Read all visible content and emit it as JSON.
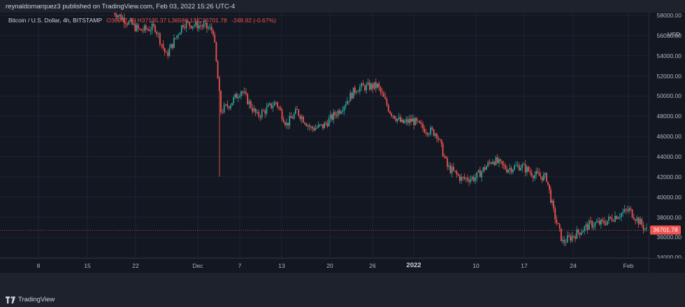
{
  "header": {
    "published": "reynaldomarquez3 published on TradingView.com, Feb 03, 2022 15:26 UTC-4"
  },
  "legend": {
    "symbol": "Bitcoin / U.S. Dollar, 4h, BITSTAMP",
    "ohlc": "O36947.79 H37135.37 L36586.13 C36701.78",
    "change": "-248.92 (-0.67%)"
  },
  "price_axis": {
    "currency": "USD",
    "ticks": [
      "58000.00",
      "56000.00",
      "54000.00",
      "52000.00",
      "50000.00",
      "48000.00",
      "46000.00",
      "44000.00",
      "42000.00",
      "40000.00",
      "38000.00",
      "36000.00",
      "34000.00"
    ],
    "last_price": "36701.78"
  },
  "time_axis": {
    "ticks": [
      {
        "label": "8",
        "major": false
      },
      {
        "label": "15",
        "major": false
      },
      {
        "label": "22",
        "major": false
      },
      {
        "label": "Dec",
        "major": false
      },
      {
        "label": "7",
        "major": false
      },
      {
        "label": "13",
        "major": false
      },
      {
        "label": "20",
        "major": false
      },
      {
        "label": "26",
        "major": false
      },
      {
        "label": "2022",
        "major": true
      },
      {
        "label": "10",
        "major": false
      },
      {
        "label": "17",
        "major": false
      },
      {
        "label": "24",
        "major": false
      },
      {
        "label": "Feb",
        "major": false
      }
    ]
  },
  "footer": {
    "brand": "TradingView"
  },
  "colors": {
    "up": "#26a69a",
    "down": "#ef5350",
    "background": "#131722",
    "frame": "#1e222d"
  },
  "chart_data": {
    "type": "candlestick",
    "symbol": "BTC/USD",
    "interval": "4h",
    "exchange": "BITSTAMP",
    "ylim": [
      33000,
      58000
    ],
    "series": [
      {
        "x": "Nov 18",
        "y": 58500
      },
      {
        "x": "Nov 22",
        "y": 56500
      },
      {
        "x": "Nov 24",
        "y": 56800
      },
      {
        "x": "Nov 26",
        "y": 54000
      },
      {
        "x": "Nov 28",
        "y": 57200
      },
      {
        "x": "Dec 01",
        "y": 57000
      },
      {
        "x": "Dec 03",
        "y": 56500
      },
      {
        "x": "Dec 04",
        "y": 48500
      },
      {
        "x": "Dec 05",
        "y": 49300
      },
      {
        "x": "Dec 07",
        "y": 50600
      },
      {
        "x": "Dec 09",
        "y": 48000
      },
      {
        "x": "Dec 11",
        "y": 49400
      },
      {
        "x": "Dec 13",
        "y": 47200
      },
      {
        "x": "Dec 15",
        "y": 48500
      },
      {
        "x": "Dec 17",
        "y": 46800
      },
      {
        "x": "Dec 19",
        "y": 47000
      },
      {
        "x": "Dec 21",
        "y": 48800
      },
      {
        "x": "Dec 23",
        "y": 50800
      },
      {
        "x": "Dec 25",
        "y": 50900
      },
      {
        "x": "Dec 27",
        "y": 51000
      },
      {
        "x": "Dec 28",
        "y": 48500
      },
      {
        "x": "Dec 30",
        "y": 47300
      },
      {
        "x": "Jan 01",
        "y": 47600
      },
      {
        "x": "Jan 03",
        "y": 46800
      },
      {
        "x": "Jan 05",
        "y": 46300
      },
      {
        "x": "Jan 06",
        "y": 43000
      },
      {
        "x": "Jan 08",
        "y": 41800
      },
      {
        "x": "Jan 10",
        "y": 41900
      },
      {
        "x": "Jan 12",
        "y": 43700
      },
      {
        "x": "Jan 14",
        "y": 42800
      },
      {
        "x": "Jan 16",
        "y": 43100
      },
      {
        "x": "Jan 18",
        "y": 42200
      },
      {
        "x": "Jan 20",
        "y": 41900
      },
      {
        "x": "Jan 21",
        "y": 38500
      },
      {
        "x": "Jan 22",
        "y": 35500
      },
      {
        "x": "Jan 24",
        "y": 36300
      },
      {
        "x": "Jan 26",
        "y": 37300
      },
      {
        "x": "Jan 28",
        "y": 37400
      },
      {
        "x": "Jan 30",
        "y": 38100
      },
      {
        "x": "Feb 01",
        "y": 38700
      },
      {
        "x": "Feb 03",
        "y": 36701.78
      }
    ]
  }
}
